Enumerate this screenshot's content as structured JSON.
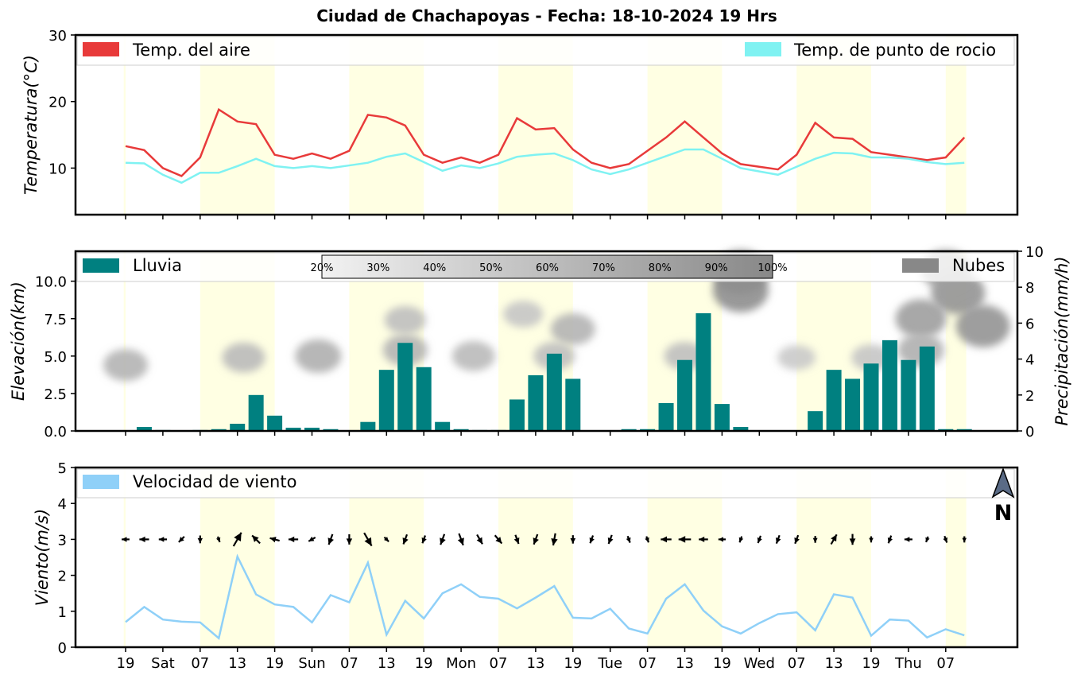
{
  "title": "Ciudad de Chachapoyas   -   Fecha: 18-10-2024 19 Hrs",
  "x_ticks": [
    "19",
    "Sat",
    "07",
    "13",
    "19",
    "Sun",
    "07",
    "13",
    "19",
    "Mon",
    "07",
    "13",
    "19",
    "Tue",
    "07",
    "13",
    "19",
    "Wed",
    "07",
    "13",
    "19",
    "Thu",
    "07"
  ],
  "colors": {
    "temp": "#e83a3a",
    "dew": "#7ff2f2",
    "rain": "#008080",
    "wind": "#8fd0f8",
    "night": "#ffffe0",
    "cloud": "#888888"
  },
  "chart_data": [
    {
      "type": "line",
      "ylabel": "Temperatura(°C)",
      "ylim": [
        3,
        30
      ],
      "yticks": [
        "10",
        "20",
        "30"
      ],
      "legend_placement": "top",
      "legend": [
        "Temp. del aire",
        "Temp. de punto de rocio"
      ],
      "x_hours": [
        0,
        3,
        6,
        9,
        12,
        15,
        18,
        21,
        24,
        27,
        30,
        33,
        36,
        39,
        42,
        45,
        48,
        51,
        54,
        57,
        60,
        63,
        66,
        69,
        72,
        75,
        78,
        81,
        84,
        87,
        90,
        93,
        96,
        99,
        102,
        105,
        108,
        111,
        114,
        117,
        120,
        123,
        126,
        129,
        132,
        135,
        138
      ],
      "series": [
        {
          "name": "Temp. del aire",
          "values": [
            13.3,
            12.7,
            10,
            8.8,
            11.6,
            18.8,
            17,
            16.6,
            12,
            11.4,
            12.2,
            11.4,
            12.6,
            18,
            17.6,
            16.4,
            12,
            10.8,
            11.6,
            10.8,
            12,
            17.5,
            15.8,
            16,
            12.8,
            10.8,
            10,
            10.6,
            12.6,
            14.6,
            17,
            14.6,
            12.2,
            10.6,
            10.2,
            9.8,
            12,
            16.8,
            14.6,
            14.4,
            12.4,
            12,
            11.6,
            11.2,
            11.6,
            14.6,
            null
          ]
        },
        {
          "name": "Temp. de punto de rocio",
          "values": [
            10.8,
            10.7,
            9,
            7.8,
            9.3,
            9.3,
            10.3,
            11.4,
            10.3,
            10,
            10.3,
            10,
            10.4,
            10.8,
            11.7,
            12.2,
            10.9,
            9.6,
            10.4,
            10,
            10.7,
            11.7,
            12,
            12.2,
            11.2,
            9.8,
            9.1,
            9.8,
            10.8,
            11.8,
            12.8,
            12.8,
            11.4,
            10,
            9.5,
            9,
            10.2,
            11.4,
            12.3,
            12.2,
            11.6,
            11.6,
            11.4,
            10.9,
            10.6,
            10.8,
            null
          ]
        }
      ]
    },
    {
      "type": "bar",
      "ylabel": "Elevación(km)",
      "ylabel_right": "Precipitación(mm/h)",
      "ylim": [
        0,
        12
      ],
      "yticks": [
        "0.0",
        "2.5",
        "5.0",
        "7.5",
        "10.0"
      ],
      "ylim_right": [
        0,
        10
      ],
      "yticks_right": [
        "0",
        "2",
        "4",
        "6",
        "8",
        "10"
      ],
      "legend": [
        "Lluvia",
        "Nubes"
      ],
      "colorbar_labels": [
        "20%",
        "30%",
        "40%",
        "50%",
        "60%",
        "70%",
        "80%",
        "90%",
        "100%"
      ],
      "series": [
        {
          "name": "Lluvia",
          "values": [
            0.02,
            0.22,
            0.05,
            0.03,
            0.05,
            0.1,
            0.4,
            2,
            0.85,
            0.18,
            0.18,
            0.1,
            0.02,
            0.5,
            3.4,
            4.9,
            3.55,
            0.5,
            0.1,
            0.05,
            0.05,
            1.75,
            3.1,
            4.3,
            2.9,
            0.02,
            0.02,
            0.1,
            0.1,
            1.55,
            3.95,
            6.55,
            1.5,
            0.22,
            0.02,
            0.02,
            0.02,
            1.1,
            3.4,
            2.9,
            3.75,
            5.05,
            3.95,
            4.7,
            0.1,
            0.1
          ]
        }
      ],
      "clouds": [
        {
          "hour": 0,
          "elev": 4.4,
          "level": 0.5
        },
        {
          "hour": 19,
          "elev": 4.9,
          "level": 0.45
        },
        {
          "hour": 31,
          "elev": 5.0,
          "level": 0.55
        },
        {
          "hour": 45,
          "elev": 5.4,
          "level": 0.5
        },
        {
          "hour": 45,
          "elev": 7.4,
          "level": 0.4
        },
        {
          "hour": 56,
          "elev": 5.0,
          "level": 0.45
        },
        {
          "hour": 64,
          "elev": 7.8,
          "level": 0.35
        },
        {
          "hour": 72,
          "elev": 6.8,
          "level": 0.5
        },
        {
          "hour": 69,
          "elev": 5.0,
          "level": 0.4
        },
        {
          "hour": 90,
          "elev": 5.0,
          "level": 0.4
        },
        {
          "hour": 99,
          "elev": 9.4,
          "level": 0.85
        },
        {
          "hour": 99,
          "elev": 10.6,
          "level": 0.85
        },
        {
          "hour": 108,
          "elev": 4.9,
          "level": 0.3
        },
        {
          "hour": 120,
          "elev": 4.9,
          "level": 0.35
        },
        {
          "hour": 128,
          "elev": 7.5,
          "level": 0.7
        },
        {
          "hour": 128,
          "elev": 5.4,
          "level": 0.55
        },
        {
          "hour": 134,
          "elev": 9.2,
          "level": 0.8
        },
        {
          "hour": 132,
          "elev": 10.8,
          "level": 0.7
        },
        {
          "hour": 138,
          "elev": 7.0,
          "level": 0.8
        }
      ]
    },
    {
      "type": "line",
      "ylabel": "Viento(m/s)",
      "ylim": [
        0,
        5
      ],
      "yticks": [
        "0",
        "1",
        "2",
        "3",
        "4",
        "5"
      ],
      "legend": [
        "Velocidad de viento"
      ],
      "north_label": "N",
      "series": [
        {
          "name": "Velocidad de viento",
          "values": [
            0.7,
            1.12,
            0.77,
            0.71,
            0.69,
            0.25,
            2.52,
            1.47,
            1.19,
            1.12,
            0.69,
            1.45,
            1.25,
            2.35,
            0.35,
            1.29,
            0.8,
            1.5,
            1.75,
            1.4,
            1.35,
            1.08,
            1.38,
            1.7,
            0.82,
            0.8,
            1.07,
            0.52,
            0.38,
            1.35,
            1.75,
            1.02,
            0.58,
            0.38,
            0.67,
            0.92,
            0.97,
            0.47,
            1.47,
            1.38,
            0.32,
            0.77,
            0.74,
            0.27,
            0.5,
            0.33
          ]
        }
      ],
      "wind_dir_deg": [
        270,
        270,
        270,
        225,
        180,
        160,
        30,
        315,
        285,
        270,
        240,
        200,
        180,
        150,
        135,
        200,
        200,
        200,
        160,
        150,
        140,
        160,
        200,
        190,
        180,
        200,
        200,
        160,
        160,
        270,
        270,
        270,
        270,
        200,
        200,
        200,
        200,
        180,
        30,
        180,
        180,
        200,
        270,
        200,
        160,
        180
      ]
    }
  ]
}
